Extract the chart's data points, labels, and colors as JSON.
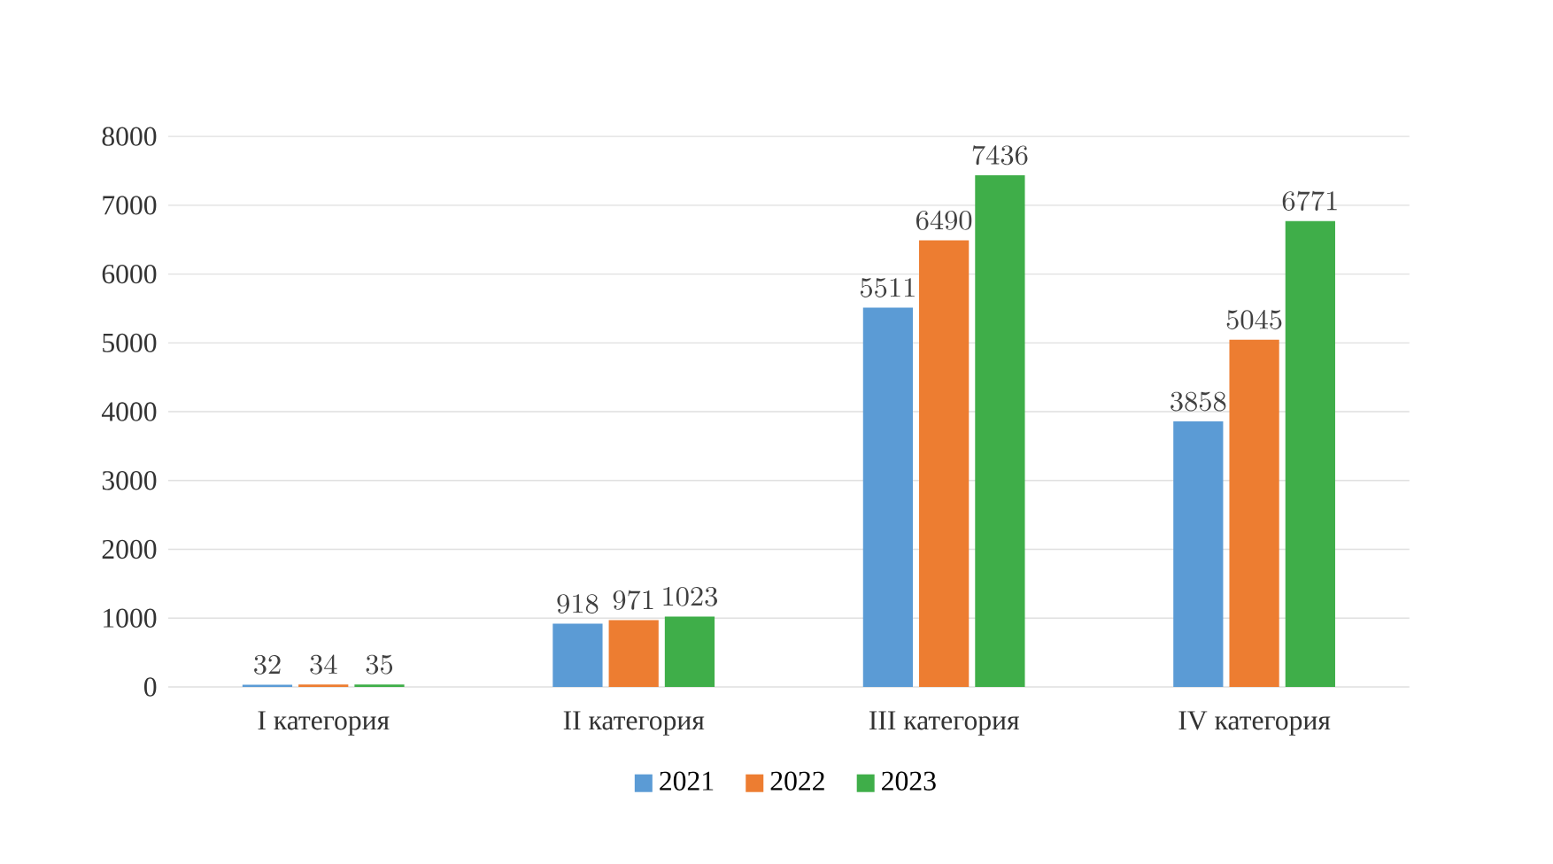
{
  "chart_data": {
    "type": "bar",
    "categories": [
      "I категория",
      "II категория",
      "III категория",
      "IV категория"
    ],
    "series": [
      {
        "name": "2021",
        "color": "#5b9bd5",
        "values": [
          32,
          918,
          5511,
          3858
        ]
      },
      {
        "name": "2022",
        "color": "#ed7d31",
        "values": [
          34,
          971,
          6490,
          5045
        ]
      },
      {
        "name": "2023",
        "color": "#3fae49",
        "values": [
          35,
          1023,
          7436,
          6771
        ]
      }
    ],
    "ylim": [
      0,
      8000
    ],
    "yticks": [
      0,
      1000,
      2000,
      3000,
      4000,
      5000,
      6000,
      7000,
      8000
    ],
    "grid": "y",
    "legend": "bottom",
    "data_labels": true
  }
}
